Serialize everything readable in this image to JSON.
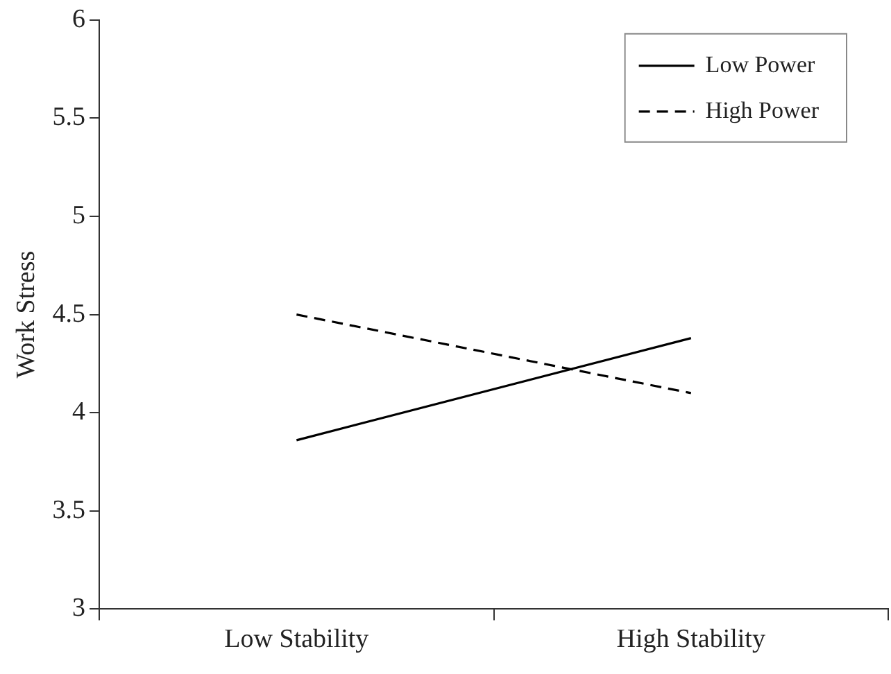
{
  "chart_data": {
    "type": "line",
    "ylabel": "Work Stress",
    "categories": [
      "Low Stability",
      "High Stability"
    ],
    "series": [
      {
        "name": "Low Power",
        "color": "#000000",
        "values": [
          3.86,
          4.38
        ],
        "line_style": "solid"
      },
      {
        "name": "High Power",
        "color": "#000000",
        "values": [
          4.5,
          4.1
        ],
        "line_style": "dashed"
      }
    ],
    "ylim": [
      3,
      6
    ],
    "yticks": [
      3,
      3.5,
      4,
      4.5,
      5,
      5.5,
      6
    ],
    "grid": false,
    "legend": "top right",
    "marker": "none"
  }
}
